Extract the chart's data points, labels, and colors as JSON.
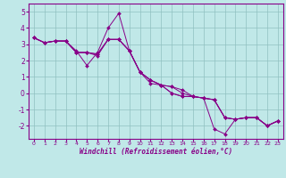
{
  "xlabel": "Windchill (Refroidissement éolien,°C)",
  "xlim": [
    -0.5,
    23.5
  ],
  "ylim": [
    -2.8,
    5.5
  ],
  "yticks": [
    -2,
    -1,
    0,
    1,
    2,
    3,
    4,
    5
  ],
  "xticks": [
    0,
    1,
    2,
    3,
    4,
    5,
    6,
    7,
    8,
    9,
    10,
    11,
    12,
    13,
    14,
    15,
    16,
    17,
    18,
    19,
    20,
    21,
    22,
    23
  ],
  "bg_color": "#c0e8e8",
  "line_color": "#880088",
  "grid_color": "#90c0c0",
  "lines": [
    {
      "x": [
        0,
        1,
        2,
        3,
        4,
        5,
        6,
        7,
        8,
        9,
        10,
        11,
        12,
        13,
        14,
        15,
        16,
        17,
        18,
        19,
        20,
        21,
        22,
        23
      ],
      "y": [
        3.4,
        3.1,
        3.2,
        3.2,
        2.6,
        1.7,
        2.5,
        4.0,
        4.9,
        2.6,
        1.3,
        0.6,
        0.5,
        0.4,
        0.2,
        -0.2,
        -0.3,
        -2.2,
        -2.5,
        -1.6,
        -1.5,
        -1.5,
        -2.0,
        -1.7
      ]
    },
    {
      "x": [
        0,
        1,
        2,
        3,
        4,
        5,
        6,
        7,
        8,
        9,
        10,
        11,
        12,
        13,
        14,
        15,
        16,
        17,
        18,
        19,
        20,
        21,
        22,
        23
      ],
      "y": [
        3.4,
        3.1,
        3.2,
        3.2,
        2.5,
        2.5,
        2.4,
        3.3,
        3.3,
        2.6,
        1.3,
        0.8,
        0.5,
        0.4,
        0.0,
        -0.2,
        -0.3,
        -0.4,
        -1.5,
        -1.6,
        -1.5,
        -1.5,
        -2.0,
        -1.7
      ]
    },
    {
      "x": [
        0,
        1,
        2,
        3,
        4,
        5,
        6,
        7,
        8,
        9,
        10,
        11,
        12,
        13,
        14,
        15,
        16,
        17,
        18,
        19,
        20,
        21,
        22,
        23
      ],
      "y": [
        3.4,
        3.1,
        3.2,
        3.2,
        2.5,
        2.5,
        2.4,
        3.3,
        3.3,
        2.6,
        1.3,
        0.8,
        0.5,
        0.0,
        -0.2,
        -0.2,
        -0.3,
        -0.4,
        -1.5,
        -1.6,
        -1.5,
        -1.5,
        -2.0,
        -1.7
      ]
    },
    {
      "x": [
        0,
        1,
        2,
        3,
        4,
        5,
        6,
        7,
        8,
        9,
        10,
        11,
        12,
        13,
        14,
        15,
        16,
        17,
        18,
        19,
        20,
        21,
        22,
        23
      ],
      "y": [
        3.4,
        3.1,
        3.2,
        3.2,
        2.5,
        2.5,
        2.3,
        3.3,
        3.3,
        2.6,
        1.3,
        0.8,
        0.5,
        0.0,
        -0.2,
        -0.2,
        -0.3,
        -0.4,
        -1.5,
        -1.6,
        -1.5,
        -1.5,
        -2.0,
        -1.7
      ]
    }
  ]
}
